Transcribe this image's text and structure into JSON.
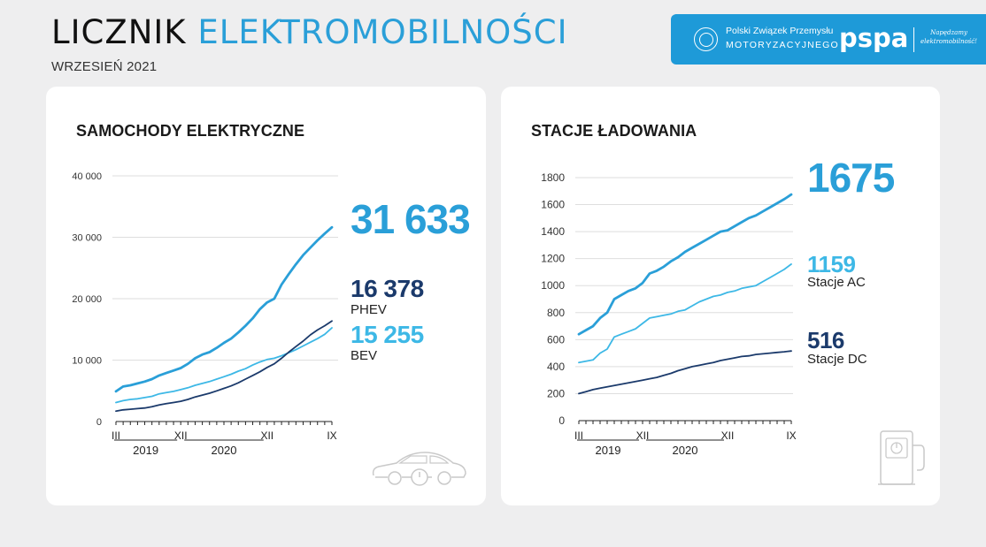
{
  "header": {
    "title_part1": "LICZNIK",
    "title_part2": "ELEKTROMOBILNOŚCI",
    "subtitle": "WRZESIEŃ 2021"
  },
  "logos": {
    "pzpm_line1": "Polski Związek Przemysłu",
    "pzpm_line2": "MOTORYZACYJNEGO",
    "pspa": "pspa",
    "pspa_tagline": "Napędzamy elektromobilność!"
  },
  "colors": {
    "accent": "#2a9fd8",
    "light": "#3db8e6",
    "dark": "#1b3a6b"
  },
  "chart_data": [
    {
      "type": "line",
      "title": "SAMOCHODY ELEKTRYCZNE",
      "ylim": [
        0,
        40000
      ],
      "yticks": [
        0,
        10000,
        20000,
        30000,
        40000
      ],
      "ytick_labels": [
        "0",
        "10 000",
        "20 000",
        "30 000",
        "40 000"
      ],
      "xtick_labels": [
        "III",
        "XII",
        "XII",
        "IX"
      ],
      "year_labels": [
        "2019",
        "2020"
      ],
      "x_range": [
        "2019-03",
        "2021-09"
      ],
      "grid": true,
      "series": [
        {
          "name": "",
          "total_value": "31 633",
          "color": "#2a9fd8",
          "x": [
            "2019-03",
            "2019-04",
            "2019-05",
            "2019-06",
            "2019-07",
            "2019-08",
            "2019-09",
            "2019-10",
            "2019-11",
            "2019-12",
            "2020-01",
            "2020-02",
            "2020-03",
            "2020-04",
            "2020-05",
            "2020-06",
            "2020-07",
            "2020-08",
            "2020-09",
            "2020-10",
            "2020-11",
            "2020-12",
            "2021-01",
            "2021-02",
            "2021-03",
            "2021-04",
            "2021-05",
            "2021-06",
            "2021-07",
            "2021-08",
            "2021-09"
          ],
          "values": [
            4900,
            5700,
            5900,
            6200,
            6500,
            6900,
            7500,
            7900,
            8300,
            8700,
            9400,
            10300,
            10900,
            11300,
            12000,
            12800,
            13500,
            14500,
            15600,
            16800,
            18300,
            19400,
            20000,
            22300,
            24000,
            25600,
            27100,
            28300,
            29500,
            30600,
            31633
          ]
        },
        {
          "name": "PHEV",
          "display_value": "16 378",
          "color": "#1b3a6b",
          "x": [
            "2019-03",
            "2019-04",
            "2019-05",
            "2019-06",
            "2019-07",
            "2019-08",
            "2019-09",
            "2019-10",
            "2019-11",
            "2019-12",
            "2020-01",
            "2020-02",
            "2020-03",
            "2020-04",
            "2020-05",
            "2020-06",
            "2020-07",
            "2020-08",
            "2020-09",
            "2020-10",
            "2020-11",
            "2020-12",
            "2021-01",
            "2021-02",
            "2021-03",
            "2021-04",
            "2021-05",
            "2021-06",
            "2021-07",
            "2021-08",
            "2021-09"
          ],
          "values": [
            1700,
            1900,
            2000,
            2100,
            2200,
            2400,
            2700,
            2900,
            3100,
            3300,
            3600,
            4000,
            4300,
            4600,
            5000,
            5400,
            5800,
            6300,
            6900,
            7500,
            8100,
            8800,
            9400,
            10300,
            11300,
            12200,
            13100,
            14100,
            14900,
            15600,
            16378
          ]
        },
        {
          "name": "BEV",
          "display_value": "15 255",
          "color": "#3db8e6",
          "x": [
            "2019-03",
            "2019-04",
            "2019-05",
            "2019-06",
            "2019-07",
            "2019-08",
            "2019-09",
            "2019-10",
            "2019-11",
            "2019-12",
            "2020-01",
            "2020-02",
            "2020-03",
            "2020-04",
            "2020-05",
            "2020-06",
            "2020-07",
            "2020-08",
            "2020-09",
            "2020-10",
            "2020-11",
            "2020-12",
            "2021-01",
            "2021-02",
            "2021-03",
            "2021-04",
            "2021-05",
            "2021-06",
            "2021-07",
            "2021-08",
            "2021-09"
          ],
          "values": [
            3100,
            3400,
            3600,
            3700,
            3900,
            4100,
            4500,
            4700,
            4900,
            5200,
            5500,
            5900,
            6200,
            6500,
            6900,
            7300,
            7700,
            8200,
            8600,
            9200,
            9700,
            10100,
            10300,
            10700,
            11200,
            11700,
            12300,
            12900,
            13500,
            14200,
            15255
          ]
        }
      ]
    },
    {
      "type": "line",
      "title": "STACJE ŁADOWANIA",
      "ylim": [
        0,
        1800
      ],
      "yticks": [
        0,
        200,
        400,
        600,
        800,
        1000,
        1200,
        1400,
        1600,
        1800
      ],
      "ytick_labels": [
        "0",
        "200",
        "400",
        "600",
        "800",
        "1000",
        "1200",
        "1400",
        "1600",
        "1800"
      ],
      "xtick_labels": [
        "III",
        "XII",
        "XII",
        "IX"
      ],
      "year_labels": [
        "2019",
        "2020"
      ],
      "x_range": [
        "2019-03",
        "2021-09"
      ],
      "grid": true,
      "series": [
        {
          "name": "",
          "total_value": "1675",
          "color": "#2a9fd8",
          "x": [
            "2019-03",
            "2019-04",
            "2019-05",
            "2019-06",
            "2019-07",
            "2019-08",
            "2019-09",
            "2019-10",
            "2019-11",
            "2019-12",
            "2020-01",
            "2020-02",
            "2020-03",
            "2020-04",
            "2020-05",
            "2020-06",
            "2020-07",
            "2020-08",
            "2020-09",
            "2020-10",
            "2020-11",
            "2020-12",
            "2021-01",
            "2021-02",
            "2021-03",
            "2021-04",
            "2021-05",
            "2021-06",
            "2021-07",
            "2021-08",
            "2021-09"
          ],
          "values": [
            640,
            670,
            700,
            760,
            800,
            900,
            930,
            960,
            980,
            1020,
            1090,
            1110,
            1140,
            1180,
            1210,
            1250,
            1280,
            1310,
            1340,
            1370,
            1400,
            1410,
            1440,
            1470,
            1500,
            1520,
            1550,
            1580,
            1610,
            1640,
            1675
          ]
        },
        {
          "name": "Stacje AC",
          "display_value": "1159",
          "color": "#3db8e6",
          "x": [
            "2019-03",
            "2019-04",
            "2019-05",
            "2019-06",
            "2019-07",
            "2019-08",
            "2019-09",
            "2019-10",
            "2019-11",
            "2019-12",
            "2020-01",
            "2020-02",
            "2020-03",
            "2020-04",
            "2020-05",
            "2020-06",
            "2020-07",
            "2020-08",
            "2020-09",
            "2020-10",
            "2020-11",
            "2020-12",
            "2021-01",
            "2021-02",
            "2021-03",
            "2021-04",
            "2021-05",
            "2021-06",
            "2021-07",
            "2021-08",
            "2021-09"
          ],
          "values": [
            430,
            440,
            450,
            500,
            530,
            620,
            640,
            660,
            680,
            720,
            760,
            770,
            780,
            790,
            810,
            820,
            850,
            880,
            900,
            920,
            930,
            950,
            960,
            980,
            990,
            1000,
            1030,
            1060,
            1090,
            1120,
            1159
          ]
        },
        {
          "name": "Stacje DC",
          "display_value": "516",
          "color": "#1b3a6b",
          "x": [
            "2019-03",
            "2019-04",
            "2019-05",
            "2019-06",
            "2019-07",
            "2019-08",
            "2019-09",
            "2019-10",
            "2019-11",
            "2019-12",
            "2020-01",
            "2020-02",
            "2020-03",
            "2020-04",
            "2020-05",
            "2020-06",
            "2020-07",
            "2020-08",
            "2020-09",
            "2020-10",
            "2020-11",
            "2020-12",
            "2021-01",
            "2021-02",
            "2021-03",
            "2021-04",
            "2021-05",
            "2021-06",
            "2021-07",
            "2021-08",
            "2021-09"
          ],
          "values": [
            200,
            215,
            230,
            240,
            250,
            260,
            270,
            280,
            290,
            300,
            310,
            320,
            335,
            350,
            370,
            385,
            400,
            410,
            420,
            430,
            445,
            455,
            465,
            475,
            480,
            490,
            495,
            500,
            505,
            510,
            516
          ]
        }
      ]
    }
  ]
}
